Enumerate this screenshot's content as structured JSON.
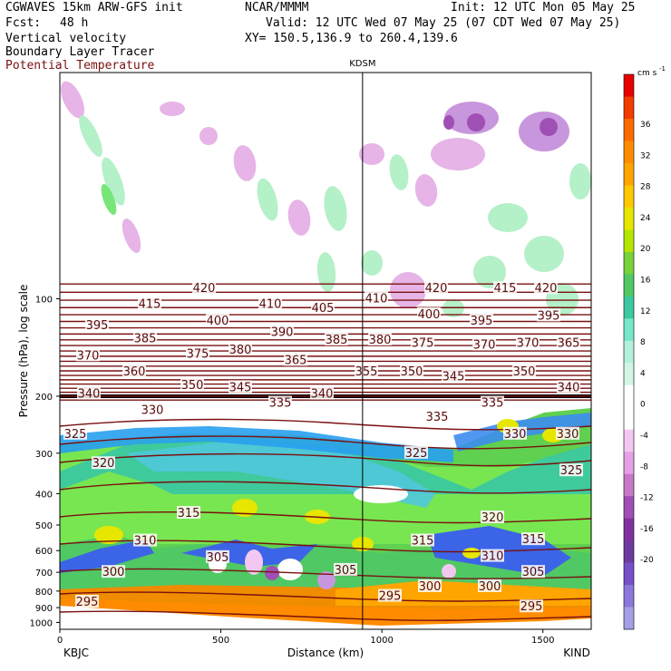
{
  "header": {
    "model": "CGWAVES 15km ARW-GFS init",
    "org": "NCAR/MMMM",
    "init": "Init: 12 UTC Mon 05 May 25",
    "fcst_label": "Fcst:",
    "fcst_value": "48 h",
    "valid": "Valid: 12 UTC Wed 07 May 25 (07 CDT Wed 07 May 25)",
    "field1": "Vertical velocity",
    "field2": "Boundary Layer Tracer",
    "field3": "Potential Temperature",
    "xy": "XY= 150.5,136.9 to 260.4,139.6",
    "field3_color": "#7a1010"
  },
  "chart_data": {
    "type": "heatmap",
    "ylabel": "Pressure (hPa), log scale",
    "xlabel": "Distance (km)",
    "y_scale": "log",
    "ylim": [
      1050,
      20
    ],
    "xlim": [
      0,
      1650
    ],
    "x_ticks": [
      0,
      500,
      1000,
      1500
    ],
    "y_ticks": [
      100,
      200,
      300,
      400,
      500,
      600,
      700,
      800,
      900,
      1000
    ],
    "station_marker": {
      "label": "KDSM",
      "x_km": 940
    },
    "left_label": "KBJC",
    "right_label": "KIND",
    "colorbar": {
      "unit": "cm s",
      "unit_exp": "-1",
      "levels": [
        36,
        32,
        28,
        24,
        20,
        16,
        12,
        8,
        4,
        0,
        -4,
        -8,
        -12,
        -16,
        -20
      ],
      "colors": [
        "#e60000",
        "#f23c00",
        "#ff6a00",
        "#ff8c00",
        "#ffa500",
        "#ffc800",
        "#e6e600",
        "#b4e600",
        "#78d23c",
        "#50c864",
        "#3cc8a0",
        "#78e6c8",
        "#b4f0dc",
        "#d2f5e6",
        "#ffffff",
        "#ffffff",
        "#f2c8f2",
        "#e6a0e6",
        "#c878c8",
        "#a050b4",
        "#8232a0",
        "#6e3ca0",
        "#7850c8",
        "#8c78dc",
        "#a5a0e6"
      ]
    },
    "theta_labels": [
      {
        "v": "420",
        "x": 225,
        "p": 93
      },
      {
        "v": "420",
        "x": 481,
        "p": 93
      },
      {
        "v": "415",
        "x": 557,
        "p": 93
      },
      {
        "v": "420",
        "x": 602,
        "p": 93
      },
      {
        "v": "415",
        "x": 165,
        "p": 104
      },
      {
        "v": "410",
        "x": 298,
        "p": 104
      },
      {
        "v": "410",
        "x": 415,
        "p": 100
      },
      {
        "v": "405",
        "x": 356,
        "p": 107
      },
      {
        "v": "400",
        "x": 240,
        "p": 117
      },
      {
        "v": "400",
        "x": 473,
        "p": 112
      },
      {
        "v": "395",
        "x": 531,
        "p": 117
      },
      {
        "v": "395",
        "x": 605,
        "p": 113
      },
      {
        "v": "395",
        "x": 107,
        "p": 121
      },
      {
        "v": "390",
        "x": 311,
        "p": 127
      },
      {
        "v": "385",
        "x": 160,
        "p": 133
      },
      {
        "v": "385",
        "x": 371,
        "p": 134
      },
      {
        "v": "380",
        "x": 419,
        "p": 134
      },
      {
        "v": "375",
        "x": 466,
        "p": 137
      },
      {
        "v": "370",
        "x": 534,
        "p": 139
      },
      {
        "v": "370",
        "x": 582,
        "p": 137
      },
      {
        "v": "365",
        "x": 627,
        "p": 137
      },
      {
        "v": "380",
        "x": 265,
        "p": 144
      },
      {
        "v": "375",
        "x": 218,
        "p": 148
      },
      {
        "v": "370",
        "x": 97,
        "p": 150
      },
      {
        "v": "365",
        "x": 326,
        "p": 155
      },
      {
        "v": "360",
        "x": 148,
        "p": 168
      },
      {
        "v": "355",
        "x": 404,
        "p": 168
      },
      {
        "v": "350",
        "x": 454,
        "p": 168
      },
      {
        "v": "345",
        "x": 500,
        "p": 174
      },
      {
        "v": "350",
        "x": 578,
        "p": 168
      },
      {
        "v": "350",
        "x": 212,
        "p": 185
      },
      {
        "v": "345",
        "x": 265,
        "p": 188
      },
      {
        "v": "340",
        "x": 98,
        "p": 197
      },
      {
        "v": "340",
        "x": 355,
        "p": 197
      },
      {
        "v": "340",
        "x": 627,
        "p": 188
      },
      {
        "v": "335",
        "x": 309,
        "p": 210
      },
      {
        "v": "335",
        "x": 482,
        "p": 232
      },
      {
        "v": "335",
        "x": 543,
        "p": 210
      },
      {
        "v": "330",
        "x": 168,
        "p": 221
      },
      {
        "v": "330",
        "x": 568,
        "p": 262
      },
      {
        "v": "330",
        "x": 626,
        "p": 262
      },
      {
        "v": "325",
        "x": 83,
        "p": 262
      },
      {
        "v": "325",
        "x": 459,
        "p": 300
      },
      {
        "v": "325",
        "x": 630,
        "p": 340
      },
      {
        "v": "320",
        "x": 114,
        "p": 323
      },
      {
        "v": "320",
        "x": 543,
        "p": 475
      },
      {
        "v": "315",
        "x": 208,
        "p": 460
      },
      {
        "v": "315",
        "x": 466,
        "p": 560
      },
      {
        "v": "315",
        "x": 588,
        "p": 555
      },
      {
        "v": "310",
        "x": 160,
        "p": 560
      },
      {
        "v": "310",
        "x": 543,
        "p": 625
      },
      {
        "v": "305",
        "x": 240,
        "p": 630
      },
      {
        "v": "305",
        "x": 381,
        "p": 690
      },
      {
        "v": "305",
        "x": 588,
        "p": 700
      },
      {
        "v": "300",
        "x": 125,
        "p": 700
      },
      {
        "v": "300",
        "x": 474,
        "p": 775
      },
      {
        "v": "300",
        "x": 540,
        "p": 775
      },
      {
        "v": "295",
        "x": 96,
        "p": 865
      },
      {
        "v": "295",
        "x": 430,
        "p": 830
      },
      {
        "v": "295",
        "x": 586,
        "p": 895
      }
    ]
  }
}
